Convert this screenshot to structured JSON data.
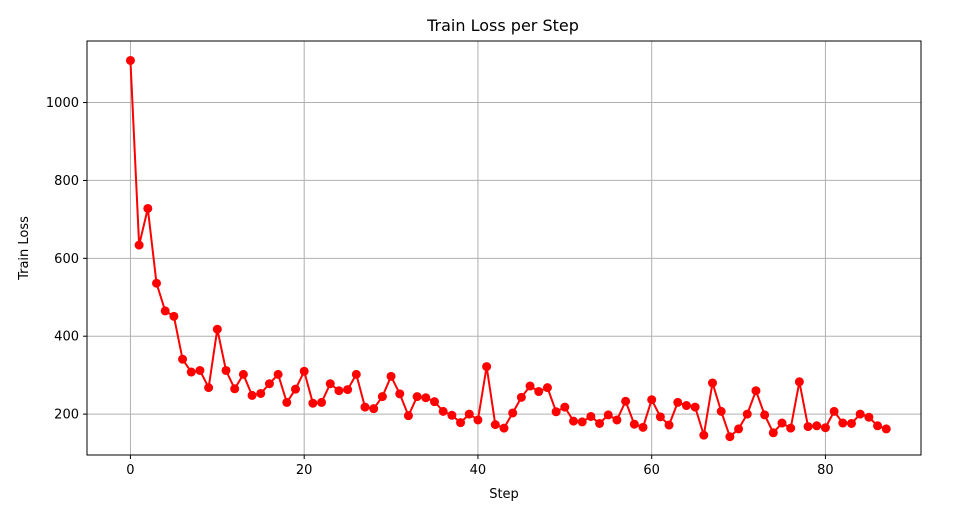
{
  "chart_data": {
    "type": "line",
    "title": "Train Loss per Step",
    "xlabel": "Step",
    "ylabel": "Train Loss",
    "xlim": [
      -5,
      91
    ],
    "ylim": [
      95,
      1158
    ],
    "xticks": [
      0,
      20,
      40,
      60,
      80
    ],
    "yticks": [
      200,
      400,
      600,
      800,
      1000
    ],
    "grid": true,
    "series": [
      {
        "color": "#ff0000",
        "marker": "circle",
        "x": [
          0,
          1,
          2,
          3,
          4,
          5,
          6,
          7,
          8,
          9,
          10,
          11,
          12,
          13,
          14,
          15,
          16,
          17,
          18,
          19,
          20,
          21,
          22,
          23,
          24,
          25,
          26,
          27,
          28,
          29,
          30,
          31,
          32,
          33,
          34,
          35,
          36,
          37,
          38,
          39,
          40,
          41,
          42,
          43,
          44,
          45,
          46,
          47,
          48,
          49,
          50,
          51,
          52,
          53,
          54,
          55,
          56,
          57,
          58,
          59,
          60,
          61,
          62,
          63,
          64,
          65,
          66,
          67,
          68,
          69,
          70,
          71,
          72,
          73,
          74,
          75,
          76,
          77,
          78,
          79,
          80,
          81,
          82,
          83,
          84,
          85,
          86,
          87
        ],
        "y": [
          1108,
          634,
          728,
          536,
          465,
          451,
          341,
          308,
          312,
          268,
          418,
          312,
          265,
          302,
          248,
          253,
          278,
          302,
          230,
          264,
          310,
          228,
          230,
          278,
          260,
          263,
          302,
          218,
          214,
          245,
          297,
          252,
          196,
          245,
          242,
          232,
          207,
          197,
          178,
          200,
          185,
          322,
          173,
          164,
          203,
          243,
          272,
          258,
          268,
          206,
          218,
          182,
          180,
          194,
          176,
          198,
          185,
          233,
          174,
          166,
          237,
          193,
          172,
          230,
          222,
          218,
          146,
          280,
          207,
          142,
          162,
          200,
          260,
          198,
          152,
          177,
          164,
          283,
          168,
          170,
          165,
          207,
          177,
          176,
          200,
          192,
          170,
          162
        ]
      }
    ]
  }
}
